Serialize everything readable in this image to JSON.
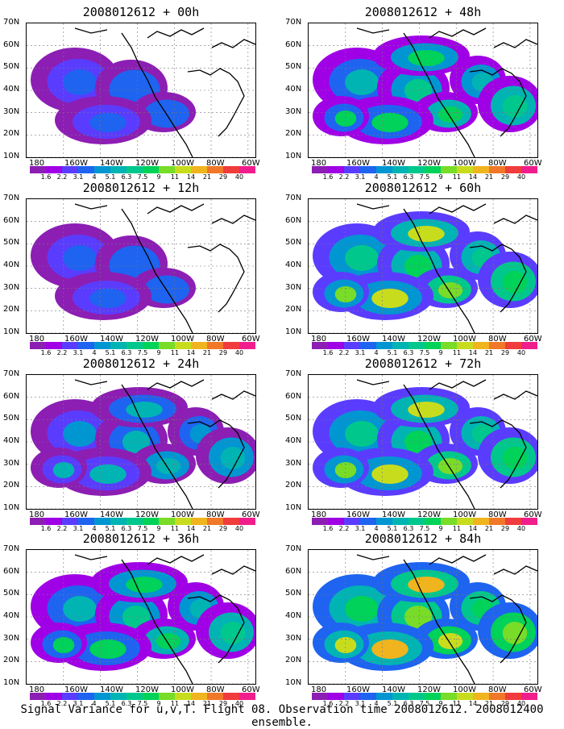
{
  "panels": [
    {
      "title": "2008012612 + 00h",
      "level": 0
    },
    {
      "title": "2008012612 + 48h",
      "level": 2
    },
    {
      "title": "2008012612 + 12h",
      "level": 0
    },
    {
      "title": "2008012612 + 60h",
      "level": 3
    },
    {
      "title": "2008012612 + 24h",
      "level": 1
    },
    {
      "title": "2008012612 + 72h",
      "level": 3
    },
    {
      "title": "2008012612 + 36h",
      "level": 2
    },
    {
      "title": "2008012612 + 84h",
      "level": 4
    }
  ],
  "lat_labels": [
    "70N",
    "60N",
    "50N",
    "40N",
    "30N",
    "20N",
    "10N"
  ],
  "lon_labels": [
    "180",
    "160W",
    "140W",
    "120W",
    "100W",
    "80W",
    "60W"
  ],
  "colorbar": {
    "ticks": [
      "1.6",
      "2.2",
      "3.1",
      "4",
      "5.1",
      "6.3",
      "7.5",
      "9",
      "11",
      "14",
      "21",
      "29",
      "40"
    ],
    "colors": [
      "#8c1eb4",
      "#a000e6",
      "#5a3cff",
      "#1e64f0",
      "#0096d2",
      "#00b4b4",
      "#00c88c",
      "#00d25a",
      "#78dc28",
      "#c8dc1e",
      "#f0b41e",
      "#f07828",
      "#f03c3c",
      "#f01e8c"
    ]
  },
  "caption": "Signal Variance for u,v,T. Flight 08. Observation time 2008012612. 2008012400 ensemble."
}
